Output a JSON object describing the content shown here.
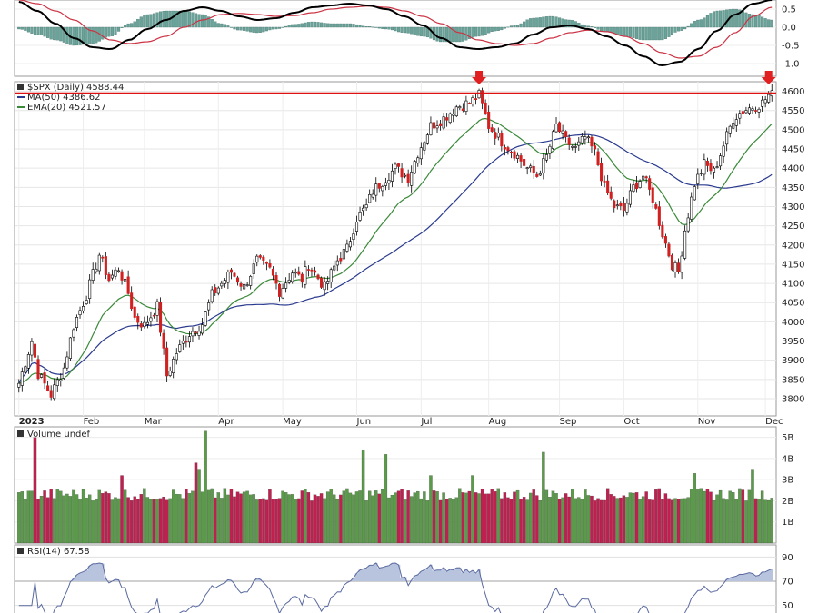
{
  "chart_data": [
    {
      "type": "line",
      "panel": "macd",
      "y_ticks": [
        "0.5",
        "0.0",
        "-0.5",
        "-1.0"
      ],
      "y_tick_values": [
        0.5,
        0.0,
        -0.5,
        -1.0
      ],
      "macd": [
        0.7,
        0.45,
        0.1,
        -0.3,
        -0.55,
        -0.6,
        -0.35,
        -0.05,
        0.2,
        0.45,
        0.55,
        0.45,
        0.3,
        0.2,
        0.25,
        0.4,
        0.55,
        0.6,
        0.65,
        0.6,
        0.5,
        0.3,
        0.05,
        -0.3,
        -0.55,
        -0.6,
        -0.55,
        -0.45,
        -0.2,
        0.0,
        0.05,
        -0.05,
        -0.25,
        -0.5,
        -0.8,
        -1.05,
        -0.95,
        -0.6,
        -0.1,
        0.35,
        0.65,
        0.75
      ],
      "signal": [
        0.75,
        0.65,
        0.45,
        0.2,
        -0.1,
        -0.35,
        -0.45,
        -0.4,
        -0.25,
        0.0,
        0.2,
        0.35,
        0.38,
        0.35,
        0.3,
        0.32,
        0.4,
        0.5,
        0.55,
        0.58,
        0.55,
        0.45,
        0.3,
        0.1,
        -0.15,
        -0.35,
        -0.45,
        -0.5,
        -0.45,
        -0.3,
        -0.15,
        -0.08,
        -0.12,
        -0.25,
        -0.45,
        -0.7,
        -0.85,
        -0.8,
        -0.55,
        -0.15,
        0.3,
        0.55
      ],
      "histogram": [
        -0.05,
        -0.2,
        -0.35,
        -0.5,
        -0.45,
        -0.25,
        0.1,
        0.35,
        0.45,
        0.45,
        0.35,
        0.1,
        -0.08,
        -0.15,
        -0.05,
        0.08,
        0.15,
        0.1,
        0.1,
        0.02,
        -0.05,
        -0.15,
        -0.25,
        -0.4,
        -0.4,
        -0.25,
        -0.1,
        0.05,
        0.25,
        0.3,
        0.2,
        0.03,
        -0.13,
        -0.25,
        -0.35,
        -0.35,
        -0.1,
        0.2,
        0.45,
        0.5,
        0.35,
        0.2
      ],
      "colors": {
        "macd": "#000000",
        "signal": "#cc3344",
        "histogram": "#6aa39a"
      }
    },
    {
      "type": "candlestick",
      "panel": "price",
      "title": "$SPX (Daily) 4588.44",
      "legend": [
        {
          "name": "MA(50) 4386.62",
          "color": "#2a3a8f"
        },
        {
          "name": "EMA(20) 4521.57",
          "color": "#3a8a3a"
        }
      ],
      "y_ticks": [
        "4600",
        "4550",
        "4500",
        "4450",
        "4400",
        "4350",
        "4300",
        "4250",
        "4200",
        "4150",
        "4100",
        "4050",
        "4000",
        "3950",
        "3900",
        "3850",
        "3800"
      ],
      "y_range": [
        3755,
        4625
      ],
      "x_labels": [
        "2023",
        "Feb",
        "Mar",
        "Apr",
        "May",
        "Jun",
        "Jul",
        "Aug",
        "Sep",
        "Oct",
        "Nov",
        "Dec"
      ],
      "x_label_index": [
        0,
        20,
        39,
        62,
        82,
        105,
        125,
        146,
        168,
        188,
        211,
        232
      ],
      "resistance_level": 4595,
      "markers": [
        {
          "index": 143,
          "type": "down-arrow"
        },
        {
          "index": 233,
          "type": "down-arrow"
        }
      ],
      "series_description": "Daily closes, approx.",
      "anchors": [
        [
          0,
          3840
        ],
        [
          4,
          3950
        ],
        [
          6,
          3865
        ],
        [
          10,
          3810
        ],
        [
          14,
          3880
        ],
        [
          17,
          3990
        ],
        [
          21,
          4070
        ],
        [
          25,
          4175
        ],
        [
          28,
          4110
        ],
        [
          31,
          4140
        ],
        [
          34,
          4075
        ],
        [
          36,
          4010
        ],
        [
          39,
          3990
        ],
        [
          43,
          4040
        ],
        [
          46,
          3860
        ],
        [
          49,
          3920
        ],
        [
          53,
          3970
        ],
        [
          57,
          3995
        ],
        [
          60,
          4070
        ],
        [
          63,
          4100
        ],
        [
          66,
          4130
        ],
        [
          70,
          4090
        ],
        [
          74,
          4160
        ],
        [
          78,
          4135
        ],
        [
          81,
          4080
        ],
        [
          85,
          4130
        ],
        [
          88,
          4110
        ],
        [
          90,
          4150
        ],
        [
          95,
          4090
        ],
        [
          99,
          4160
        ],
        [
          102,
          4190
        ],
        [
          105,
          4270
        ],
        [
          108,
          4300
        ],
        [
          110,
          4340
        ],
        [
          114,
          4375
        ],
        [
          117,
          4400
        ],
        [
          121,
          4375
        ],
        [
          124,
          4440
        ],
        [
          128,
          4510
        ],
        [
          132,
          4530
        ],
        [
          136,
          4560
        ],
        [
          140,
          4570
        ],
        [
          143,
          4590
        ],
        [
          146,
          4510
        ],
        [
          150,
          4470
        ],
        [
          154,
          4440
        ],
        [
          158,
          4400
        ],
        [
          161,
          4380
        ],
        [
          164,
          4430
        ],
        [
          167,
          4510
        ],
        [
          170,
          4470
        ],
        [
          173,
          4450
        ],
        [
          176,
          4480
        ],
        [
          179,
          4440
        ],
        [
          182,
          4350
        ],
        [
          185,
          4300
        ],
        [
          188,
          4290
        ],
        [
          191,
          4350
        ],
        [
          194,
          4380
        ],
        [
          197,
          4320
        ],
        [
          200,
          4230
        ],
        [
          203,
          4150
        ],
        [
          205,
          4130
        ],
        [
          207,
          4240
        ],
        [
          210,
          4360
        ],
        [
          213,
          4410
        ],
        [
          216,
          4390
        ],
        [
          219,
          4460
        ],
        [
          222,
          4530
        ],
        [
          225,
          4550
        ],
        [
          228,
          4560
        ],
        [
          231,
          4570
        ],
        [
          233,
          4590
        ]
      ],
      "colors": {
        "up": "#ffffff",
        "down": "#d02020",
        "wick": "#000000",
        "ma50": "#2a3a8f",
        "ema20": "#3a8a3a",
        "resistance": "#dd1111",
        "marker": "#e02020"
      }
    },
    {
      "type": "bar",
      "panel": "volume",
      "title": "Volume undef",
      "y_ticks": [
        "5B",
        "4B",
        "3B",
        "2B",
        "1B"
      ],
      "y_tick_values": [
        5,
        4,
        3,
        2,
        1
      ],
      "y_range": [
        0,
        5.5
      ],
      "typical_volume": 2.3,
      "spikes": [
        {
          "index": 5,
          "value": 5.0
        },
        {
          "index": 58,
          "value": 5.3
        },
        {
          "index": 55,
          "value": 3.8
        },
        {
          "index": 56,
          "value": 3.5
        },
        {
          "index": 32,
          "value": 3.2
        },
        {
          "index": 107,
          "value": 4.4
        },
        {
          "index": 114,
          "value": 4.2
        },
        {
          "index": 128,
          "value": 3.2
        },
        {
          "index": 163,
          "value": 4.3
        },
        {
          "index": 141,
          "value": 3.2
        },
        {
          "index": 210,
          "value": 3.3
        },
        {
          "index": 228,
          "value": 3.5
        }
      ],
      "colors": {
        "up": "#5a9a4a",
        "down": "#c02050"
      }
    },
    {
      "type": "line",
      "panel": "rsi",
      "title": "RSI(14) 67.58",
      "y_ticks": [
        "90",
        "70",
        "50"
      ],
      "y_tick_values": [
        90,
        70,
        50
      ],
      "y_range": [
        40,
        100
      ],
      "colors": {
        "line": "#5a6aa0",
        "fill": "#b8c4de"
      }
    }
  ]
}
